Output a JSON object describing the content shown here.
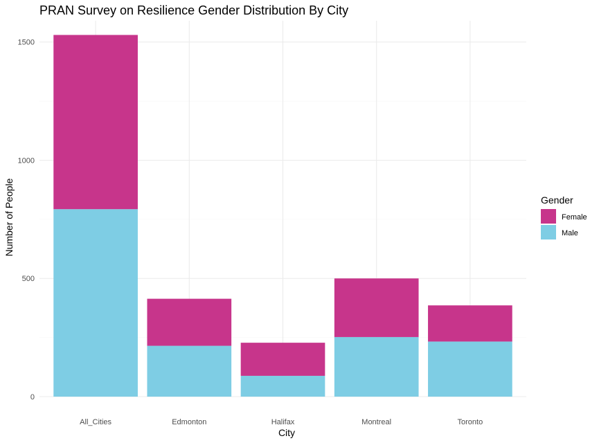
{
  "chart_data": {
    "type": "bar",
    "stacked": true,
    "title": "PRAN Survey on Resilience Gender Distribution By City",
    "xlabel": "City",
    "ylabel": "Number of People",
    "categories": [
      "All_Cities",
      "Edmonton",
      "Halifax",
      "Montreal",
      "Toronto"
    ],
    "series": [
      {
        "name": "Male",
        "color": "#7ecde4",
        "values": [
          793,
          215,
          88,
          252,
          233
        ]
      },
      {
        "name": "Female",
        "color": "#c7358b",
        "values": [
          737,
          199,
          140,
          248,
          153
        ]
      }
    ],
    "ylim": [
      0,
      1590
    ],
    "yticks": [
      0,
      500,
      1000,
      1500
    ],
    "ytick_labels": [
      "0",
      "500",
      "1000",
      "1500"
    ],
    "grid": true,
    "legend": {
      "title": "Gender",
      "placement": "right",
      "entries": [
        {
          "label": "Female",
          "color": "#c7358b"
        },
        {
          "label": "Male",
          "color": "#7ecde4"
        }
      ]
    }
  }
}
